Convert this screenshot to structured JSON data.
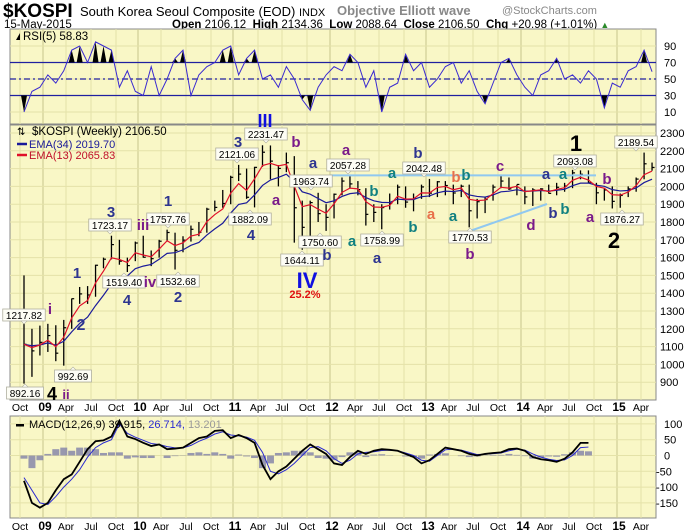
{
  "header": {
    "symbol": "$KOSPI",
    "name": "South Korea Seoul Composite (EOD)",
    "exchange": "INDX",
    "date": "15-May-2015",
    "open_label": "Open",
    "open": "2106.12",
    "high_label": "High",
    "high": "2134.36",
    "low_label": "Low",
    "low": "2088.64",
    "close_label": "Close",
    "close": "2106.50",
    "chg_label": "Chg",
    "chg": "+20.98 (+1.01%)",
    "chg_icon": "up-triangle-icon",
    "annotator": "Objective Elliott wave",
    "brand": "@StockCharts.com"
  },
  "chart_data": [
    {
      "type": "line",
      "panel": "rsi",
      "legend": "RSI(5) 58.83",
      "ylim": [
        0,
        100
      ],
      "yticks": [
        "90",
        "70",
        "50",
        "30",
        "10"
      ],
      "levels": [
        70,
        50,
        30
      ],
      "colors": {
        "line": "#3a2ad0",
        "fill": "#000000"
      },
      "values": [
        10,
        35,
        40,
        55,
        45,
        60,
        85,
        90,
        70,
        95,
        90,
        85,
        40,
        60,
        35,
        30,
        65,
        30,
        50,
        75,
        85,
        30,
        55,
        65,
        70,
        85,
        90,
        55,
        75,
        85,
        50,
        55,
        40,
        65,
        50,
        25,
        12,
        40,
        55,
        65,
        60,
        80,
        70,
        40,
        60,
        10,
        40,
        45,
        80,
        60,
        70,
        40,
        50,
        65,
        70,
        45,
        60,
        35,
        20,
        45,
        70,
        75,
        55,
        40,
        30,
        55,
        60,
        75,
        50,
        55,
        45,
        60,
        50,
        15,
        45,
        40,
        60,
        65,
        85,
        58.83
      ]
    },
    {
      "type": "ohlc",
      "panel": "price",
      "legend": "$KOSPI (Weekly) 2106.50",
      "ema34_label": "EMA(34) 2019.70",
      "ema13_label": "EMA(13) 2065.83",
      "colors": {
        "ema34": "#1a1a9a",
        "ema13": "#e0102a",
        "bars": "#000000"
      },
      "ylim": [
        850,
        2350
      ],
      "yticks": [
        "2300",
        "2200",
        "2100",
        "2000",
        "1900",
        "1800",
        "1700",
        "1600",
        "1500",
        "1400",
        "1300",
        "1200",
        "1100",
        "1000",
        "900"
      ],
      "xticks": [
        "Oct",
        "09",
        "Apr",
        "Jul",
        "Oct",
        "10",
        "Apr",
        "Jul",
        "Oct",
        "11",
        "Apr",
        "Jul",
        "Oct",
        "12",
        "Apr",
        "Jul",
        "Oct",
        "13",
        "Apr",
        "Jul",
        "Oct",
        "14",
        "Apr",
        "Jul",
        "Oct",
        "15",
        "Apr"
      ],
      "start": "2008-10",
      "monthly_hlc": [
        [
          1500,
          892,
          1113
        ],
        [
          1200,
          930,
          1076
        ],
        [
          1218,
          1050,
          1124
        ],
        [
          1228,
          1070,
          1162
        ],
        [
          1220,
          1018,
          1063
        ],
        [
          1250,
          993,
          1206
        ],
        [
          1370,
          1200,
          1369
        ],
        [
          1435,
          1340,
          1396
        ],
        [
          1440,
          1340,
          1390
        ],
        [
          1560,
          1380,
          1557
        ],
        [
          1600,
          1540,
          1591
        ],
        [
          1723,
          1590,
          1673
        ],
        [
          1700,
          1560,
          1580
        ],
        [
          1600,
          1519,
          1555
        ],
        [
          1690,
          1580,
          1682
        ],
        [
          1723,
          1600,
          1602
        ],
        [
          1640,
          1552,
          1594
        ],
        [
          1700,
          1600,
          1692
        ],
        [
          1757,
          1690,
          1741
        ],
        [
          1740,
          1533,
          1641
        ],
        [
          1720,
          1630,
          1698
        ],
        [
          1780,
          1690,
          1759
        ],
        [
          1800,
          1720,
          1742
        ],
        [
          1880,
          1740,
          1872
        ],
        [
          1920,
          1860,
          1882
        ],
        [
          1980,
          1880,
          1904
        ],
        [
          2060,
          1900,
          2051
        ],
        [
          2121,
          2030,
          2069
        ],
        [
          2100,
          1930,
          1939
        ],
        [
          2110,
          1882,
          2107
        ],
        [
          2231,
          2110,
          2192
        ],
        [
          2230,
          2040,
          2142
        ],
        [
          2120,
          2000,
          2101
        ],
        [
          2190,
          2080,
          2133
        ],
        [
          2170,
          1684,
          1880
        ],
        [
          1920,
          1644,
          1770
        ],
        [
          1920,
          1690,
          1909
        ],
        [
          1964,
          1800,
          1847
        ],
        [
          1900,
          1750,
          1826
        ],
        [
          1960,
          1820,
          1956
        ],
        [
          2050,
          1950,
          2030
        ],
        [
          2057,
          1990,
          2014
        ],
        [
          2030,
          1950,
          1982
        ],
        [
          1990,
          1780,
          1843
        ],
        [
          1900,
          1800,
          1854
        ],
        [
          1900,
          1759,
          1881
        ],
        [
          1960,
          1870,
          1905
        ],
        [
          2010,
          1900,
          1996
        ],
        [
          2000,
          1880,
          1912
        ],
        [
          1960,
          1860,
          1932
        ],
        [
          2010,
          1930,
          1997
        ],
        [
          2042,
          1940,
          1962
        ],
        [
          2030,
          1940,
          2026
        ],
        [
          2030,
          1950,
          2005
        ],
        [
          2010,
          1900,
          1963
        ],
        [
          2010,
          1940,
          2001
        ],
        [
          2010,
          1770,
          1863
        ],
        [
          1930,
          1820,
          1914
        ],
        [
          1940,
          1850,
          1926
        ],
        [
          2010,
          1920,
          1996
        ],
        [
          2060,
          1990,
          2030
        ],
        [
          2050,
          1980,
          1986
        ],
        [
          2010,
          1950,
          2011
        ],
        [
          2000,
          1900,
          1941
        ],
        [
          1990,
          1890,
          1980
        ],
        [
          1990,
          1920,
          1986
        ],
        [
          2010,
          1960,
          1961
        ],
        [
          2020,
          1950,
          1995
        ],
        [
          2020,
          1970,
          2002
        ],
        [
          2093,
          1990,
          2076
        ],
        [
          2090,
          2040,
          2068
        ],
        [
          2090,
          2020,
          2020
        ],
        [
          2020,
          1900,
          1964
        ],
        [
          1990,
          1920,
          1980
        ],
        [
          2000,
          1876,
          1916
        ],
        [
          1960,
          1880,
          1949
        ],
        [
          2000,
          1940,
          1986
        ],
        [
          2050,
          1970,
          2041
        ],
        [
          2190,
          2040,
          2127
        ],
        [
          2134,
          2088,
          2106.5
        ]
      ],
      "resistance_level": 2062,
      "price_labels": [
        "892.16",
        "992.69",
        "1217.82",
        "1723.17",
        "1519.40",
        "1532.68",
        "1757.76",
        "2121.06",
        "2231.47",
        "1882.09",
        "1963.74",
        "1750.60",
        "1644.11",
        "2057.28",
        "1758.99",
        "2042.48",
        "1770.53",
        "2093.08",
        "1876.27",
        "2189.54"
      ],
      "wave_labels": [
        {
          "text": "4",
          "color": "#000000"
        },
        {
          "text": "ii",
          "color": "#7a1a8a"
        },
        {
          "text": "i",
          "color": "#7a1a8a"
        },
        {
          "text": "2",
          "color": "#2e3590"
        },
        {
          "text": "1",
          "color": "#2e3590"
        },
        {
          "text": "3",
          "color": "#2e3590"
        },
        {
          "text": "iii",
          "color": "#7a1a8a"
        },
        {
          "text": "4",
          "color": "#2e3590"
        },
        {
          "text": "iv",
          "color": "#7a1a8a"
        },
        {
          "text": "2",
          "color": "#2e3590"
        },
        {
          "text": "1",
          "color": "#2e3590"
        },
        {
          "text": "3",
          "color": "#2e3590"
        },
        {
          "text": "III",
          "color": "#1010e0"
        },
        {
          "text": "b",
          "color": "#7a1a8a"
        },
        {
          "text": "a",
          "color": "#7a1a8a"
        },
        {
          "text": "4",
          "color": "#2e3590"
        },
        {
          "text": "a",
          "color": "#2e3590"
        },
        {
          "text": "b",
          "color": "#2e3590"
        },
        {
          "text": "IV",
          "color": "#1010e0"
        },
        {
          "text": "25.2%",
          "color": "#e01010"
        },
        {
          "text": "a",
          "color": "#7a1a8a"
        },
        {
          "text": "b",
          "color": "#108080"
        },
        {
          "text": "a",
          "color": "#108080"
        },
        {
          "text": "a",
          "color": "#2e3590"
        },
        {
          "text": "b",
          "color": "#2e3590"
        },
        {
          "text": "a",
          "color": "#108080"
        },
        {
          "text": "b",
          "color": "#e8704a"
        },
        {
          "text": "a",
          "color": "#e8704a"
        },
        {
          "text": "b",
          "color": "#108080"
        },
        {
          "text": "b",
          "color": "#108080"
        },
        {
          "text": "a",
          "color": "#108080"
        },
        {
          "text": "c",
          "color": "#7a1a8a"
        },
        {
          "text": "b",
          "color": "#7a1a8a"
        },
        {
          "text": "d",
          "color": "#7a1a8a"
        },
        {
          "text": "b",
          "color": "#2e3590"
        },
        {
          "text": "b",
          "color": "#108080"
        },
        {
          "text": "a",
          "color": "#2e3590"
        },
        {
          "text": "a",
          "color": "#108080"
        },
        {
          "text": "1",
          "color": "#000000"
        },
        {
          "text": "b",
          "color": "#7a1a8a"
        },
        {
          "text": "a",
          "color": "#7a1a8a"
        },
        {
          "text": "2",
          "color": "#000000"
        }
      ]
    },
    {
      "type": "line",
      "panel": "macd",
      "legend_name": "MACD(12,26,9)",
      "legend_macd": "39.915",
      "legend_signal": "26.714",
      "legend_hist": "13.201",
      "colors": {
        "macd": "#000000",
        "signal": "#2a2ad0",
        "hist": "#8080a8"
      },
      "ylim": [
        -175,
        115
      ],
      "yticks": [
        "100",
        "50",
        "0",
        "-50",
        "-100",
        "-150"
      ],
      "macd": [
        -80,
        -150,
        -165,
        -150,
        -110,
        -75,
        -60,
        -20,
        20,
        45,
        48,
        60,
        110,
        60,
        52,
        40,
        30,
        35,
        20,
        22,
        25,
        40,
        55,
        60,
        78,
        80,
        55,
        65,
        55,
        40,
        -30,
        -75,
        -50,
        -35,
        -10,
        15,
        35,
        20,
        5,
        -25,
        -30,
        -5,
        15,
        5,
        15,
        20,
        18,
        15,
        5,
        -5,
        -25,
        -15,
        5,
        25,
        20,
        15,
        5,
        0,
        5,
        8,
        10,
        20,
        22,
        15,
        -5,
        -12,
        -15,
        -20,
        -10,
        10,
        40,
        39.9
      ],
      "signal": [
        -70,
        -110,
        -150,
        -155,
        -130,
        -100,
        -75,
        -45,
        -5,
        25,
        40,
        50,
        100,
        70,
        58,
        48,
        38,
        35,
        28,
        24,
        24,
        32,
        45,
        55,
        68,
        75,
        65,
        62,
        58,
        48,
        10,
        -50,
        -58,
        -45,
        -25,
        0,
        25,
        28,
        15,
        -10,
        -25,
        -15,
        5,
        10,
        12,
        16,
        17,
        15,
        8,
        0,
        -15,
        -18,
        0,
        18,
        20,
        17,
        10,
        3,
        4,
        6,
        8,
        15,
        20,
        17,
        5,
        -5,
        -12,
        -16,
        -14,
        0,
        25,
        26.7
      ]
    }
  ]
}
